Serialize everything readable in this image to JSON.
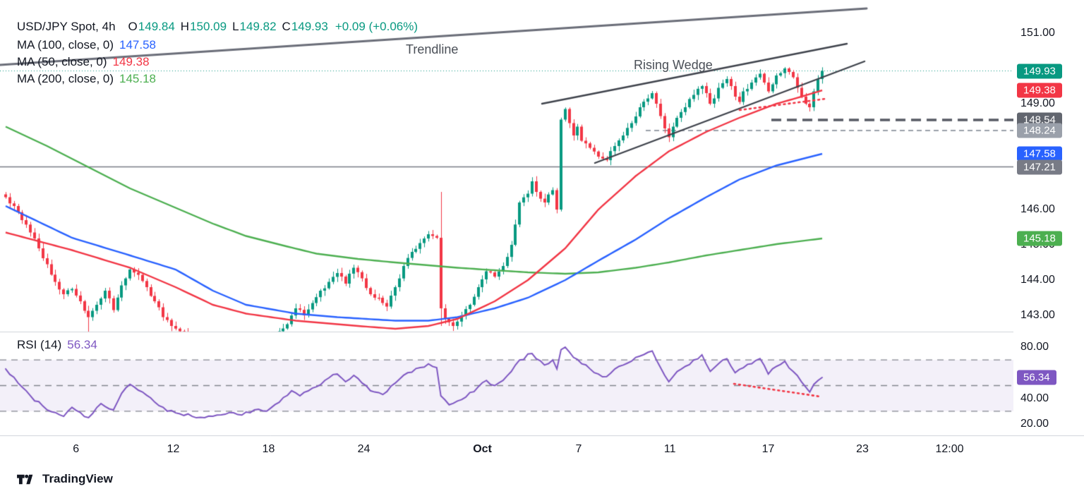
{
  "legend": {
    "symbol": "USD/JPY Spot, 4h",
    "ohlc": [
      {
        "k": "O",
        "v": "149.84"
      },
      {
        "k": "H",
        "v": "150.09"
      },
      {
        "k": "L",
        "v": "149.82"
      },
      {
        "k": "C",
        "v": "149.93"
      }
    ],
    "change": "+0.09 (+0.06%)",
    "mas": [
      {
        "label": "MA (100, close, 0)",
        "value": "147.58",
        "color": "#2962ff"
      },
      {
        "label": "MA (50, close, 0)",
        "value": "149.38",
        "color": "#f23645"
      },
      {
        "label": "MA (200, close, 0)",
        "value": "145.18",
        "color": "#4caf50"
      }
    ]
  },
  "colors": {
    "up": "#089981",
    "down": "#f23645",
    "ma50": "#f23645",
    "ma100": "#2962ff",
    "ma200": "#4caf50",
    "rsi": "#7e57c2",
    "axis_text": "#131722",
    "divider": "#d1d4dc",
    "trendline": "#6a6d78",
    "wedge": "#3f434c",
    "annotation_text": "#4a4f57"
  },
  "price_axis": {
    "ticks": [
      {
        "label": "151.00",
        "price": 151.0
      },
      {
        "label": "149.00",
        "price": 149.0
      },
      {
        "label": "146.00",
        "price": 146.0
      },
      {
        "label": "145.00",
        "price": 145.0
      },
      {
        "label": "144.00",
        "price": 144.0
      },
      {
        "label": "143.00",
        "price": 143.0
      }
    ],
    "badges": [
      {
        "label": "149.93",
        "price": 149.93,
        "color": "#089981",
        "name": "last-price-badge"
      },
      {
        "label": "149.38",
        "price": 149.38,
        "color": "#f23645",
        "name": "ma50-badge"
      },
      {
        "label": "148.54",
        "price": 148.54,
        "color": "#62666f",
        "name": "level-148-54-badge"
      },
      {
        "label": "148.24",
        "price": 148.24,
        "color": "#9aa0aa",
        "name": "level-148-24-badge"
      },
      {
        "label": "147.58",
        "price": 147.58,
        "color": "#2962ff",
        "name": "ma100-badge"
      },
      {
        "label": "147.21",
        "price": 147.21,
        "color": "#787b86",
        "name": "level-147-21-badge"
      },
      {
        "label": "145.18",
        "price": 145.18,
        "color": "#4caf50",
        "name": "ma200-badge"
      }
    ]
  },
  "time_axis": {
    "ticks": [
      {
        "label": "6",
        "f": 0.075
      },
      {
        "label": "12",
        "f": 0.171
      },
      {
        "label": "18",
        "f": 0.265
      },
      {
        "label": "24",
        "f": 0.359
      },
      {
        "label": "Oct",
        "f": 0.476,
        "bold": true
      },
      {
        "label": "7",
        "f": 0.571
      },
      {
        "label": "11",
        "f": 0.661
      },
      {
        "label": "17",
        "f": 0.758
      },
      {
        "label": "23",
        "f": 0.851
      },
      {
        "label": "12:00",
        "f": 0.937
      }
    ]
  },
  "footer": {
    "brand": "TradingView"
  },
  "chart_data": {
    "type": "candlestick",
    "symbol": "USD/JPY Spot",
    "timeframe": "4h",
    "current": {
      "open": 149.84,
      "high": 150.09,
      "low": 149.82,
      "close": 149.93,
      "change": "+0.09",
      "change_pct": "+0.06%"
    },
    "price_ylim": [
      142.54,
      151.94
    ],
    "close_path": [
      [
        0,
        146.35
      ],
      [
        2,
        146.1
      ],
      [
        4,
        145.7
      ],
      [
        6,
        145.35
      ],
      [
        8,
        144.9
      ],
      [
        10,
        144.45
      ],
      [
        12,
        143.95
      ],
      [
        14,
        143.6
      ],
      [
        16,
        143.75
      ],
      [
        18,
        143.4
      ],
      [
        20,
        142.95
      ],
      [
        22,
        143.3
      ],
      [
        24,
        143.7
      ],
      [
        26,
        143.15
      ],
      [
        28,
        143.85
      ],
      [
        30,
        144.3
      ],
      [
        32,
        144.15
      ],
      [
        34,
        143.8
      ],
      [
        36,
        143.4
      ],
      [
        38,
        142.95
      ],
      [
        40,
        142.7
      ],
      [
        42,
        142.55
      ],
      [
        44,
        142.35
      ],
      [
        46,
        142.2
      ],
      [
        48,
        142.1
      ],
      [
        50,
        142.0
      ],
      [
        52,
        142.1
      ],
      [
        54,
        142.0
      ],
      [
        56,
        141.95
      ],
      [
        58,
        142.05
      ],
      [
        60,
        142.15
      ],
      [
        62,
        142.05
      ],
      [
        64,
        142.3
      ],
      [
        66,
        142.55
      ],
      [
        68,
        142.75
      ],
      [
        70,
        143.2
      ],
      [
        72,
        143.0
      ],
      [
        74,
        143.35
      ],
      [
        76,
        143.7
      ],
      [
        78,
        143.95
      ],
      [
        80,
        144.2
      ],
      [
        82,
        143.9
      ],
      [
        84,
        144.35
      ],
      [
        86,
        144.05
      ],
      [
        88,
        143.6
      ],
      [
        90,
        143.5
      ],
      [
        92,
        143.25
      ],
      [
        94,
        143.8
      ],
      [
        96,
        144.4
      ],
      [
        98,
        144.8
      ],
      [
        100,
        145.05
      ],
      [
        102,
        145.3
      ],
      [
        104,
        145.2
      ],
      [
        105,
        143.2
      ],
      [
        106,
        142.9
      ],
      [
        108,
        142.7
      ],
      [
        110,
        143.0
      ],
      [
        112,
        143.3
      ],
      [
        114,
        143.8
      ],
      [
        116,
        144.25
      ],
      [
        118,
        144.1
      ],
      [
        120,
        144.4
      ],
      [
        122,
        145.0
      ],
      [
        124,
        146.2
      ],
      [
        126,
        146.45
      ],
      [
        127,
        146.8
      ],
      [
        128,
        146.5
      ],
      [
        130,
        146.2
      ],
      [
        132,
        146.55
      ],
      [
        133,
        146.0
      ],
      [
        134,
        148.55
      ],
      [
        135,
        148.85
      ],
      [
        136,
        148.45
      ],
      [
        137,
        148.1
      ],
      [
        138,
        148.35
      ],
      [
        139,
        147.95
      ],
      [
        141,
        147.75
      ],
      [
        143,
        147.5
      ],
      [
        145,
        147.4
      ],
      [
        147,
        147.8
      ],
      [
        149,
        148.1
      ],
      [
        151,
        148.45
      ],
      [
        153,
        148.9
      ],
      [
        155,
        149.15
      ],
      [
        156,
        149.3
      ],
      [
        157,
        149.0
      ],
      [
        158,
        148.65
      ],
      [
        159,
        148.3
      ],
      [
        160,
        148.05
      ],
      [
        161,
        148.35
      ],
      [
        162,
        148.6
      ],
      [
        164,
        148.9
      ],
      [
        166,
        149.25
      ],
      [
        168,
        149.5
      ],
      [
        169,
        149.3
      ],
      [
        170,
        149.0
      ],
      [
        171,
        149.15
      ],
      [
        172,
        149.45
      ],
      [
        174,
        149.7
      ],
      [
        175,
        149.5
      ],
      [
        176,
        149.2
      ],
      [
        177,
        149.05
      ],
      [
        178,
        149.35
      ],
      [
        180,
        149.6
      ],
      [
        182,
        149.85
      ],
      [
        183,
        149.6
      ],
      [
        184,
        149.35
      ],
      [
        185,
        149.55
      ],
      [
        186,
        149.8
      ],
      [
        188,
        150.0
      ],
      [
        189,
        149.9
      ],
      [
        190,
        149.75
      ],
      [
        191,
        149.45
      ],
      [
        192,
        149.2
      ],
      [
        193,
        149.0
      ],
      [
        194,
        148.9
      ],
      [
        195,
        149.35
      ],
      [
        196,
        149.7
      ],
      [
        197,
        149.93
      ]
    ],
    "spikes": [
      {
        "i": 20,
        "l": 142.45
      },
      {
        "i": 105,
        "h": 146.5,
        "l": 142.7
      },
      {
        "i": 134,
        "l": 145.95
      }
    ],
    "ma50": {
      "name": "MA 50",
      "color": "#f23645",
      "path": [
        [
          0,
          145.35
        ],
        [
          16,
          144.85
        ],
        [
          30,
          144.35
        ],
        [
          41,
          143.8
        ],
        [
          50,
          143.3
        ],
        [
          58,
          143.05
        ],
        [
          70,
          142.85
        ],
        [
          85,
          142.7
        ],
        [
          94,
          142.62
        ],
        [
          102,
          142.7
        ],
        [
          109,
          142.9
        ],
        [
          118,
          143.4
        ],
        [
          126,
          144.0
        ],
        [
          135,
          144.9
        ],
        [
          143,
          146.0
        ],
        [
          152,
          146.95
        ],
        [
          160,
          147.65
        ],
        [
          169,
          148.2
        ],
        [
          177,
          148.6
        ],
        [
          186,
          149.0
        ],
        [
          192,
          149.2
        ],
        [
          197,
          149.38
        ]
      ]
    },
    "ma100": {
      "name": "MA 100",
      "color": "#2962ff",
      "path": [
        [
          0,
          146.1
        ],
        [
          16,
          145.2
        ],
        [
          30,
          144.7
        ],
        [
          41,
          144.3
        ],
        [
          50,
          143.7
        ],
        [
          58,
          143.3
        ],
        [
          70,
          143.05
        ],
        [
          80,
          142.95
        ],
        [
          94,
          142.85
        ],
        [
          102,
          142.85
        ],
        [
          109,
          142.95
        ],
        [
          118,
          143.2
        ],
        [
          126,
          143.5
        ],
        [
          135,
          144.0
        ],
        [
          143,
          144.55
        ],
        [
          152,
          145.15
        ],
        [
          160,
          145.75
        ],
        [
          169,
          146.35
        ],
        [
          177,
          146.85
        ],
        [
          186,
          147.25
        ],
        [
          197,
          147.58
        ]
      ]
    },
    "ma200": {
      "name": "MA 200",
      "color": "#4caf50",
      "path": [
        [
          0,
          148.35
        ],
        [
          10,
          147.8
        ],
        [
          20,
          147.2
        ],
        [
          30,
          146.6
        ],
        [
          41,
          146.05
        ],
        [
          50,
          145.6
        ],
        [
          58,
          145.25
        ],
        [
          68,
          144.95
        ],
        [
          75,
          144.75
        ],
        [
          85,
          144.6
        ],
        [
          94,
          144.5
        ],
        [
          102,
          144.42
        ],
        [
          109,
          144.35
        ],
        [
          118,
          144.28
        ],
        [
          126,
          144.22
        ],
        [
          135,
          144.18
        ],
        [
          143,
          144.22
        ],
        [
          152,
          144.35
        ],
        [
          160,
          144.5
        ],
        [
          169,
          144.7
        ],
        [
          177,
          144.85
        ],
        [
          186,
          145.02
        ],
        [
          197,
          145.18
        ]
      ]
    },
    "levels": [
      {
        "price": 147.21,
        "style": "solid",
        "color": "#787b86",
        "width": 1.5,
        "from": 0,
        "dash": []
      },
      {
        "price": 148.24,
        "style": "dashed",
        "color": "#9aa0aa",
        "width": 2,
        "from": 915,
        "dash": [
          7,
          5
        ]
      },
      {
        "price": 148.54,
        "style": "dashed",
        "color": "#565a64",
        "width": 3.5,
        "from": 1093,
        "dash": [
          14,
          8
        ]
      },
      {
        "price": 149.93,
        "style": "dotted",
        "color": "#089981",
        "width": 1,
        "from": 0,
        "dash": [
          1,
          3
        ]
      }
    ],
    "annotations": {
      "trendline": {
        "label": "Trendline",
        "line": [
          0,
          92,
          1228,
          12
        ],
        "label_pos": [
          575,
          60
        ]
      },
      "rising_wedge": {
        "label": "Rising Wedge",
        "upper": [
          768,
          147,
          1200,
          62
        ],
        "lower": [
          843,
          231,
          1225,
          87
        ],
        "label_pos": [
          898,
          82
        ]
      },
      "divergence_price": [
        1048,
        156,
        1170,
        140
      ],
      "divergence_rsi": [
        1040,
        544,
        1162,
        562
      ]
    },
    "rsi": {
      "label": "RSI (14)",
      "period": 14,
      "current": 56.34,
      "badge": "56.34",
      "color": "#7e57c2",
      "ylim": [
        12.3,
        92.1
      ],
      "band": [
        30,
        70
      ],
      "levels": [
        70,
        50,
        30
      ],
      "ticks": [
        {
          "label": "80.00",
          "value": 80
        },
        {
          "label": "40.00",
          "value": 40
        },
        {
          "label": "20.00",
          "value": 20
        }
      ],
      "path": [
        [
          0,
          63
        ],
        [
          3,
          52
        ],
        [
          6,
          42
        ],
        [
          9,
          34
        ],
        [
          12,
          29
        ],
        [
          14,
          26
        ],
        [
          16,
          33
        ],
        [
          18,
          29
        ],
        [
          20,
          25
        ],
        [
          23,
          36
        ],
        [
          26,
          31
        ],
        [
          28,
          44
        ],
        [
          30,
          51
        ],
        [
          33,
          45
        ],
        [
          36,
          37
        ],
        [
          39,
          30
        ],
        [
          42,
          28
        ],
        [
          45,
          26
        ],
        [
          48,
          25
        ],
        [
          51,
          27
        ],
        [
          54,
          29
        ],
        [
          57,
          27
        ],
        [
          60,
          31
        ],
        [
          63,
          30
        ],
        [
          66,
          37
        ],
        [
          69,
          46
        ],
        [
          71,
          42
        ],
        [
          74,
          48
        ],
        [
          77,
          54
        ],
        [
          80,
          59
        ],
        [
          82,
          53
        ],
        [
          84,
          58
        ],
        [
          86,
          52
        ],
        [
          88,
          46
        ],
        [
          91,
          43
        ],
        [
          94,
          52
        ],
        [
          97,
          60
        ],
        [
          100,
          64
        ],
        [
          102,
          67
        ],
        [
          104,
          64
        ],
        [
          105,
          42
        ],
        [
          107,
          35
        ],
        [
          109,
          38
        ],
        [
          111,
          41
        ],
        [
          114,
          49
        ],
        [
          116,
          54
        ],
        [
          118,
          50
        ],
        [
          120,
          54
        ],
        [
          122,
          61
        ],
        [
          124,
          70
        ],
        [
          127,
          75
        ],
        [
          128,
          71
        ],
        [
          130,
          66
        ],
        [
          132,
          70
        ],
        [
          133,
          63
        ],
        [
          134,
          78
        ],
        [
          135,
          80
        ],
        [
          137,
          72
        ],
        [
          139,
          67
        ],
        [
          141,
          63
        ],
        [
          143,
          59
        ],
        [
          145,
          57
        ],
        [
          147,
          63
        ],
        [
          149,
          66
        ],
        [
          151,
          69
        ],
        [
          153,
          73
        ],
        [
          155,
          76
        ],
        [
          156,
          77
        ],
        [
          157,
          70
        ],
        [
          158,
          64
        ],
        [
          159,
          58
        ],
        [
          160,
          53
        ],
        [
          161,
          57
        ],
        [
          162,
          61
        ],
        [
          164,
          65
        ],
        [
          166,
          70
        ],
        [
          168,
          74
        ],
        [
          169,
          67
        ],
        [
          170,
          61
        ],
        [
          171,
          64
        ],
        [
          172,
          67
        ],
        [
          174,
          71
        ],
        [
          176,
          60
        ],
        [
          178,
          64
        ],
        [
          180,
          67
        ],
        [
          182,
          71
        ],
        [
          184,
          59
        ],
        [
          186,
          65
        ],
        [
          188,
          69
        ],
        [
          190,
          61
        ],
        [
          192,
          53
        ],
        [
          193,
          49
        ],
        [
          194,
          45
        ],
        [
          195,
          51
        ],
        [
          196,
          54
        ],
        [
          197,
          56.34
        ]
      ]
    }
  }
}
